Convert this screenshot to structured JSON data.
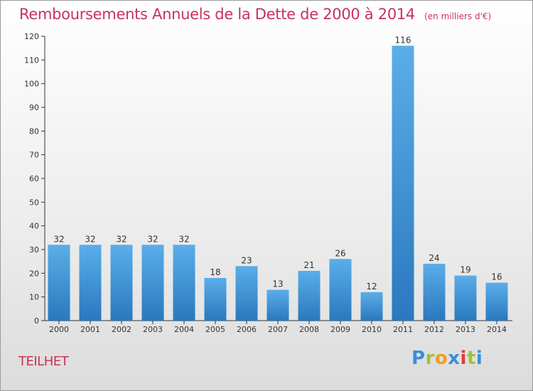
{
  "title": "Remboursements Annuels de la Dette de 2000 à 2014",
  "unit": "(en milliers d'€)",
  "commune": "TEILHET",
  "logo": "Proxiti",
  "colors": {
    "bar_top": "#5aaee8",
    "bar_bottom": "#2a78bf",
    "title": "#c8325a"
  },
  "chart_data": {
    "type": "bar",
    "categories": [
      "2000",
      "2001",
      "2002",
      "2003",
      "2004",
      "2005",
      "2006",
      "2007",
      "2008",
      "2009",
      "2010",
      "2011",
      "2012",
      "2013",
      "2014"
    ],
    "values": [
      32,
      32,
      32,
      32,
      32,
      18,
      23,
      13,
      21,
      26,
      12,
      116,
      24,
      19,
      16
    ],
    "ylim": [
      0,
      120
    ],
    "yticks": [
      0,
      10,
      20,
      30,
      40,
      50,
      60,
      70,
      80,
      90,
      100,
      110,
      120
    ],
    "grid": false
  }
}
